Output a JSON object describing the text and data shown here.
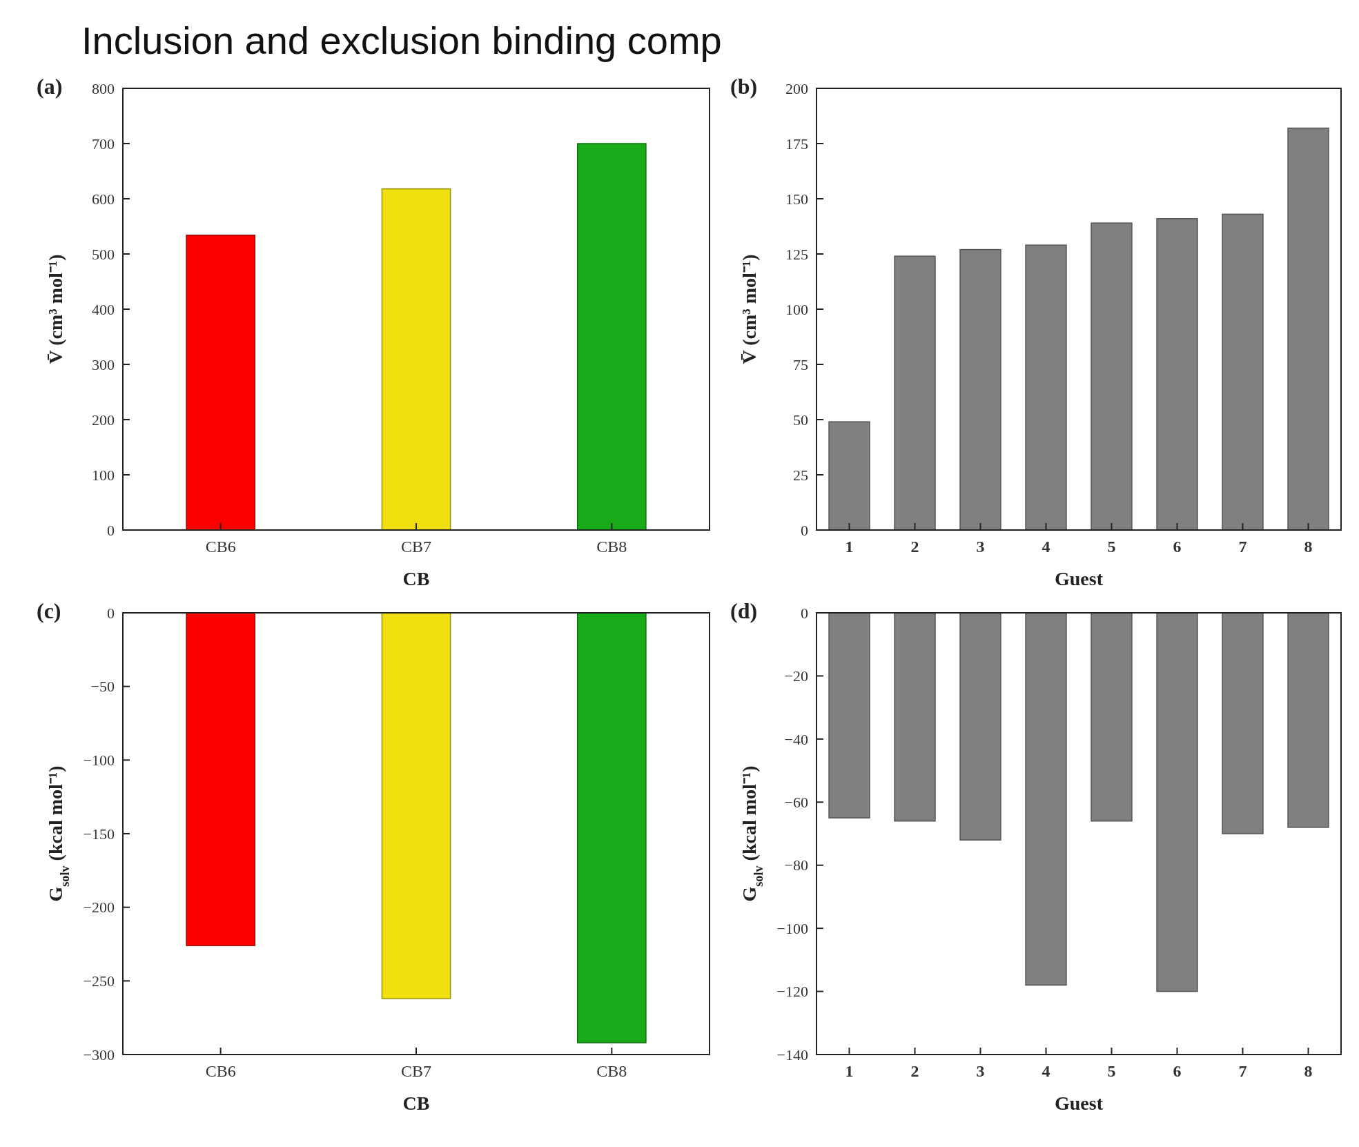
{
  "chart_data": [
    {
      "type": "bar",
      "title": "Inclusion and exclusion binding comp",
      "annotations": [
        "(a)"
      ],
      "xlabel": "CB",
      "ylabel": "V̄ (cm³ mol⁻¹)",
      "categories": [
        "CB6",
        "CB7",
        "CB8"
      ],
      "values": [
        534,
        618,
        700
      ],
      "colors": [
        "#fc0000",
        "#f0e010",
        "#18aa18"
      ],
      "ylim": [
        0,
        800
      ],
      "yticks": [
        0,
        100,
        200,
        300,
        400,
        500,
        600,
        700,
        800
      ],
      "grid": false
    },
    {
      "type": "bar",
      "annotations": [
        "(b)"
      ],
      "xlabel": "Guest",
      "ylabel": "V̄ (cm³ mol⁻¹)",
      "categories": [
        "1",
        "2",
        "3",
        "4",
        "5",
        "6",
        "7",
        "8"
      ],
      "values": [
        49,
        124,
        127,
        129,
        139,
        141,
        143,
        182
      ],
      "color": "#808080",
      "ylim": [
        0,
        200
      ],
      "yticks": [
        0,
        25,
        50,
        75,
        100,
        125,
        150,
        175,
        200
      ],
      "grid": false
    },
    {
      "type": "bar",
      "annotations": [
        "(c)"
      ],
      "xlabel": "CB",
      "ylabel": "G$_{solv}$ (kcal mol⁻¹)",
      "categories": [
        "CB6",
        "CB7",
        "CB8"
      ],
      "values": [
        -226,
        -262,
        -292
      ],
      "colors": [
        "#fc0000",
        "#f0e010",
        "#18aa18"
      ],
      "ylim": [
        -300,
        0
      ],
      "yticks": [
        -300,
        -250,
        -200,
        -150,
        -100,
        -50,
        0
      ],
      "grid": false
    },
    {
      "type": "bar",
      "annotations": [
        "(d)"
      ],
      "xlabel": "Guest",
      "ylabel": "G$_{solv}$ (kcal mol⁻¹)",
      "categories": [
        "1",
        "2",
        "3",
        "4",
        "5",
        "6",
        "7",
        "8"
      ],
      "values": [
        -65,
        -66,
        -72,
        -118,
        -66,
        -120,
        -70,
        -68
      ],
      "color": "#808080",
      "ylim": [
        -140,
        0
      ],
      "yticks": [
        -140,
        -120,
        -100,
        -80,
        -60,
        -40,
        -20,
        0
      ],
      "grid": false
    }
  ]
}
